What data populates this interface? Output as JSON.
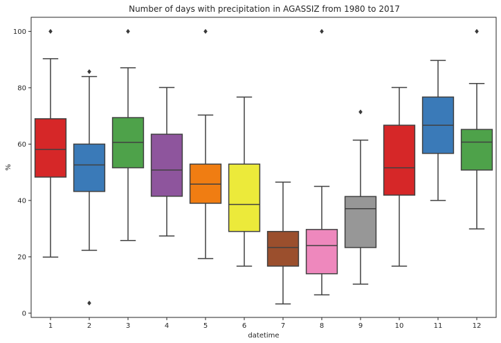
{
  "chart_data": {
    "type": "box",
    "title": "Number of days with precipitation in AGASSIZ from 1980 to 2017",
    "xlabel": "datetime",
    "ylabel": "%",
    "ylim": [
      -1.5,
      105
    ],
    "yticks": [
      0,
      20,
      40,
      60,
      80,
      100
    ],
    "grid": false,
    "categories": [
      "1",
      "2",
      "3",
      "4",
      "5",
      "6",
      "7",
      "8",
      "9",
      "10",
      "11",
      "12"
    ],
    "colors": [
      "#d62728",
      "#3a7ab8",
      "#4ea24a",
      "#8e559d",
      "#f07d12",
      "#ecea3a",
      "#9b4f2d",
      "#ee88bd",
      "#979797",
      "#d62728",
      "#3a7ab8",
      "#4ea24a"
    ],
    "boxes": [
      {
        "category": "1",
        "whisker_low": 19.9,
        "q1": 48.3,
        "median": 58.1,
        "q3": 69.0,
        "whisker_high": 90.3,
        "outliers": [
          100
        ]
      },
      {
        "category": "2",
        "whisker_low": 22.3,
        "q1": 43.2,
        "median": 52.6,
        "q3": 60.0,
        "whisker_high": 84.0,
        "outliers": [
          85.7,
          3.6
        ]
      },
      {
        "category": "3",
        "whisker_low": 25.8,
        "q1": 51.6,
        "median": 60.6,
        "q3": 69.4,
        "whisker_high": 87.1,
        "outliers": [
          100
        ]
      },
      {
        "category": "4",
        "whisker_low": 27.4,
        "q1": 41.5,
        "median": 50.8,
        "q3": 63.5,
        "whisker_high": 80.1,
        "outliers": []
      },
      {
        "category": "5",
        "whisker_low": 19.4,
        "q1": 39.0,
        "median": 45.8,
        "q3": 52.9,
        "whisker_high": 70.3,
        "outliers": [
          100
        ]
      },
      {
        "category": "6",
        "whisker_low": 16.7,
        "q1": 29.0,
        "median": 38.6,
        "q3": 52.9,
        "whisker_high": 76.7,
        "outliers": []
      },
      {
        "category": "7",
        "whisker_low": 3.3,
        "q1": 16.7,
        "median": 23.3,
        "q3": 29.0,
        "whisker_high": 46.5,
        "outliers": []
      },
      {
        "category": "8",
        "whisker_low": 6.5,
        "q1": 14.0,
        "median": 24.0,
        "q3": 29.7,
        "whisker_high": 45.0,
        "outliers": [
          100
        ]
      },
      {
        "category": "9",
        "whisker_low": 10.3,
        "q1": 23.3,
        "median": 37.1,
        "q3": 41.4,
        "whisker_high": 61.4,
        "outliers": [
          71.4
        ]
      },
      {
        "category": "10",
        "whisker_low": 16.7,
        "q1": 41.9,
        "median": 51.6,
        "q3": 66.7,
        "whisker_high": 80.1,
        "outliers": []
      },
      {
        "category": "11",
        "whisker_low": 40.0,
        "q1": 56.7,
        "median": 66.7,
        "q3": 76.7,
        "whisker_high": 89.7,
        "outliers": []
      },
      {
        "category": "12",
        "whisker_low": 29.9,
        "q1": 50.8,
        "median": 60.7,
        "q3": 65.2,
        "whisker_high": 81.5,
        "outliers": [
          100
        ]
      }
    ]
  }
}
